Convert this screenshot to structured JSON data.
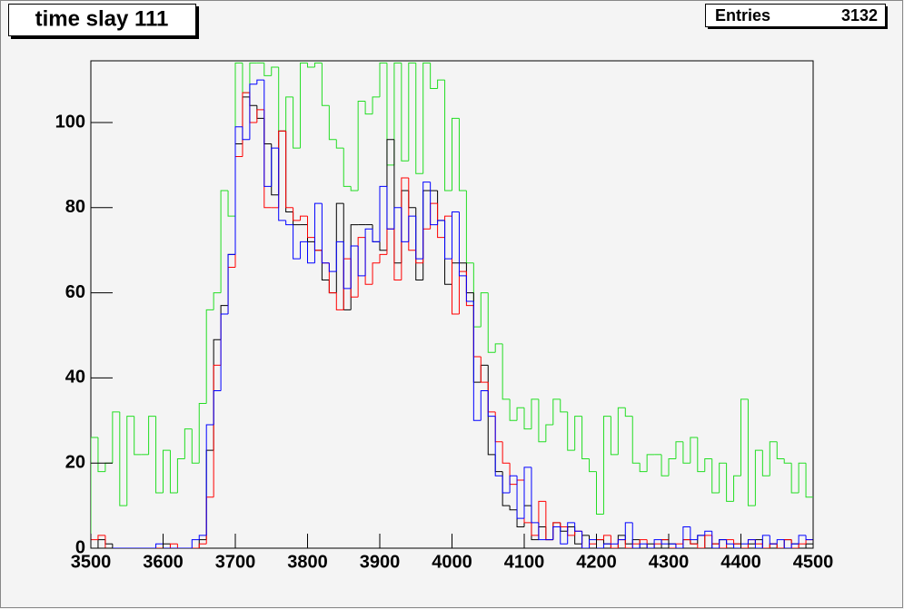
{
  "chart_data": {
    "type": "histogram",
    "title": "time slay 111",
    "stats": {
      "label": "Entries",
      "value": 3132
    },
    "bins": [
      3500,
      3510,
      3520,
      3530,
      3540,
      3550,
      3560,
      3570,
      3580,
      3590,
      3600,
      3610,
      3620,
      3630,
      3640,
      3650,
      3660,
      3670,
      3680,
      3690,
      3700,
      3710,
      3720,
      3730,
      3740,
      3750,
      3760,
      3770,
      3780,
      3790,
      3800,
      3810,
      3820,
      3830,
      3840,
      3850,
      3860,
      3870,
      3880,
      3890,
      3900,
      3910,
      3920,
      3930,
      3940,
      3950,
      3960,
      3970,
      3980,
      3990,
      4000,
      4010,
      4020,
      4030,
      4040,
      4050,
      4060,
      4070,
      4080,
      4090,
      4100,
      4110,
      4120,
      4130,
      4140,
      4150,
      4160,
      4170,
      4180,
      4190,
      4200,
      4210,
      4220,
      4230,
      4240,
      4250,
      4260,
      4270,
      4280,
      4290,
      4300,
      4310,
      4320,
      4330,
      4340,
      4350,
      4360,
      4370,
      4380,
      4390,
      4400,
      4410,
      4420,
      4430,
      4440,
      4450,
      4460,
      4470,
      4480,
      4490,
      4500
    ],
    "series": [
      {
        "color": "#22dd22",
        "values": [
          26,
          18,
          20,
          32,
          10,
          31,
          22,
          22,
          31,
          13,
          23,
          13,
          21,
          28,
          20,
          34,
          56,
          60,
          84,
          78,
          114,
          107,
          114,
          114,
          111,
          113,
          98,
          106,
          94,
          114,
          113,
          114,
          104,
          96,
          94,
          85,
          84,
          105,
          102,
          106,
          114,
          90,
          114,
          91,
          114,
          88,
          114,
          108,
          110,
          84,
          101,
          84,
          67,
          52,
          60,
          46,
          48,
          35,
          30,
          33,
          28,
          35,
          25,
          29,
          35,
          32,
          23,
          31,
          21,
          18,
          8,
          31,
          22,
          33,
          31,
          20,
          18,
          22,
          22,
          17,
          21,
          25,
          20,
          26,
          18,
          21,
          13,
          20,
          11,
          17,
          35,
          10,
          23,
          17,
          25,
          21,
          20,
          13,
          20,
          12
        ]
      },
      {
        "color": "#000000",
        "values": [
          0,
          2,
          1,
          0,
          0,
          0,
          0,
          0,
          0,
          0,
          1,
          0,
          0,
          0,
          0,
          2,
          23,
          49,
          57,
          69,
          95,
          106,
          104,
          101,
          95,
          83,
          98,
          79,
          76,
          76,
          72,
          70,
          63,
          60,
          81,
          56,
          76,
          76,
          76,
          72,
          70,
          96,
          67,
          84,
          80,
          63,
          84,
          84,
          77,
          62,
          67,
          67,
          60,
          39,
          43,
          22,
          18,
          10,
          9,
          5,
          10,
          2,
          5,
          2,
          6,
          4,
          5,
          1,
          3,
          0,
          2,
          1,
          0,
          3,
          1,
          2,
          0,
          1,
          0,
          2,
          1,
          0,
          2,
          1,
          3,
          0,
          1,
          2,
          0,
          1,
          0,
          1,
          2,
          0,
          1,
          0,
          2,
          1,
          0,
          1
        ]
      },
      {
        "color": "#ff0000",
        "values": [
          2,
          3,
          0,
          0,
          0,
          0,
          0,
          0,
          0,
          0,
          0,
          1,
          0,
          0,
          0,
          1,
          12,
          43,
          55,
          66,
          92,
          107,
          100,
          103,
          80,
          80,
          98,
          80,
          77,
          78,
          73,
          70,
          67,
          60,
          56,
          68,
          59,
          73,
          62,
          67,
          69,
          75,
          63,
          87,
          70,
          67,
          75,
          81,
          73,
          78,
          55,
          65,
          57,
          45,
          39,
          32,
          25,
          20,
          15,
          16,
          6,
          3,
          11,
          2,
          6,
          5,
          3,
          4,
          0,
          1,
          2,
          3,
          0,
          2,
          0,
          1,
          2,
          0,
          1,
          2,
          0,
          1,
          2,
          1,
          0,
          3,
          1,
          0,
          2,
          1,
          0,
          2,
          1,
          0,
          1,
          0,
          2,
          0,
          1,
          2
        ]
      },
      {
        "color": "#0000ff",
        "values": [
          0,
          0,
          0,
          0,
          0,
          0,
          0,
          0,
          0,
          1,
          0,
          0,
          0,
          0,
          2,
          3,
          29,
          37,
          55,
          69,
          99,
          96,
          109,
          110,
          85,
          94,
          77,
          76,
          68,
          72,
          67,
          81,
          67,
          65,
          72,
          61,
          71,
          64,
          75,
          72,
          85,
          75,
          80,
          72,
          78,
          68,
          86,
          76,
          77,
          68,
          79,
          64,
          58,
          30,
          37,
          31,
          17,
          13,
          17,
          7,
          19,
          6,
          2,
          2,
          5,
          1,
          6,
          4,
          0,
          2,
          0,
          1,
          1,
          2,
          6,
          0,
          1,
          0,
          2,
          1,
          1,
          0,
          5,
          2,
          3,
          4,
          0,
          2,
          1,
          0,
          1,
          2,
          0,
          3,
          1,
          2,
          0,
          1,
          3,
          2
        ]
      }
    ],
    "xlim": [
      3500,
      4500
    ],
    "xticks": [
      3500,
      3600,
      3700,
      3800,
      3900,
      4000,
      4100,
      4200,
      4300,
      4400,
      4500
    ],
    "ylim": [
      0,
      114.5
    ],
    "yticks": [
      0,
      20,
      40,
      60,
      80,
      100
    ]
  }
}
